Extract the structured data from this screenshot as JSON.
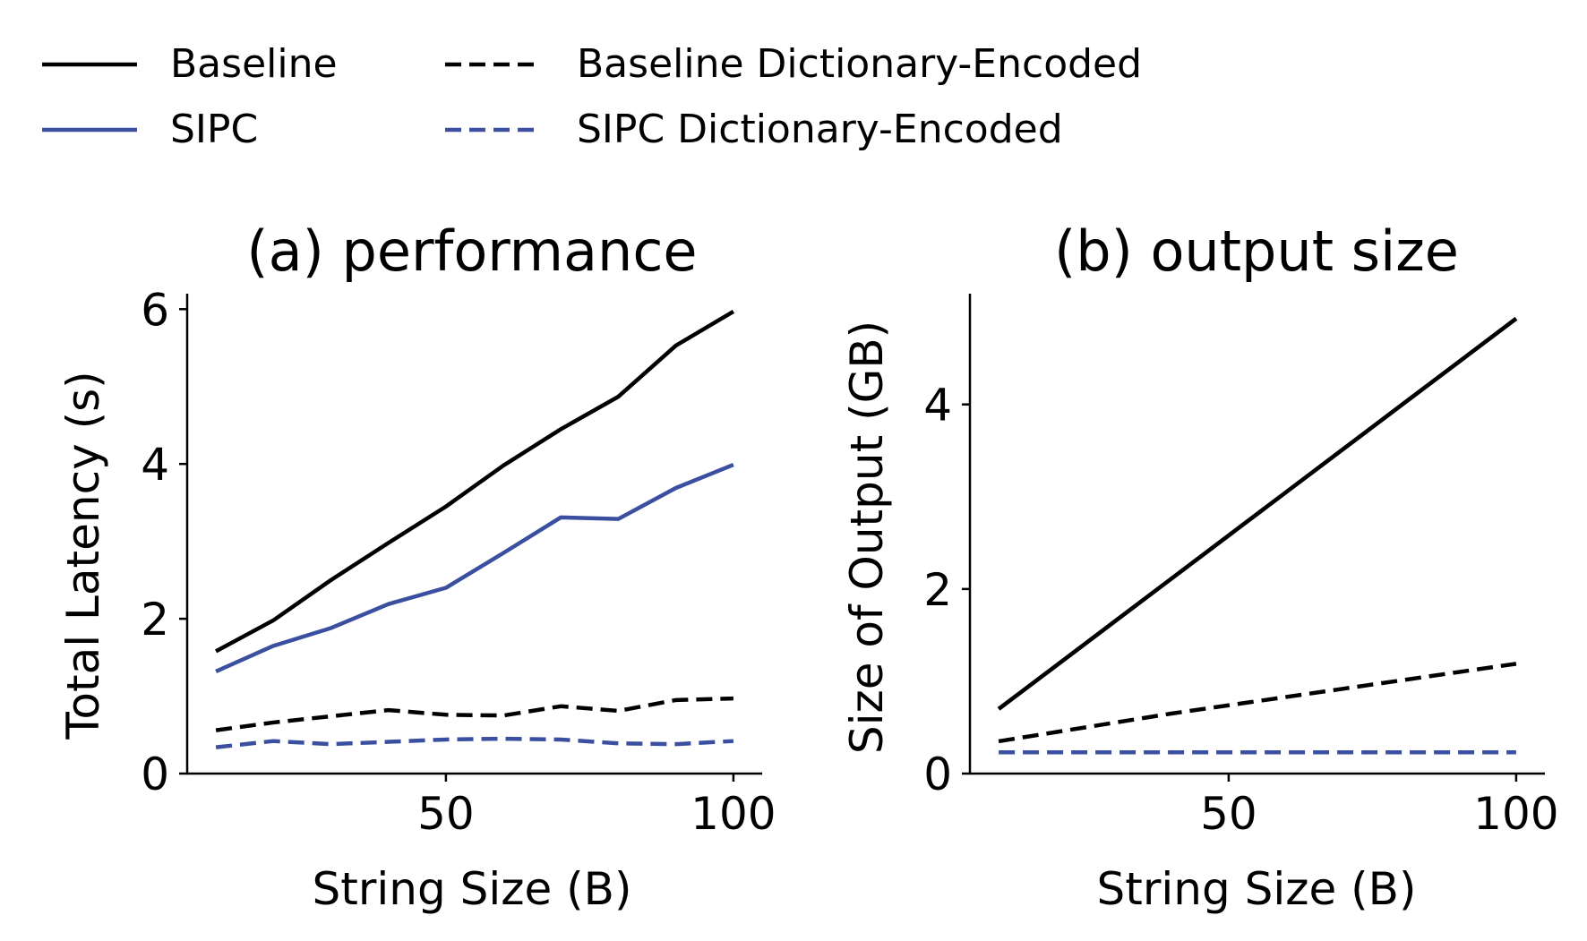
{
  "legend": {
    "items": [
      {
        "label": "Baseline",
        "color": "#000000",
        "dash": "solid"
      },
      {
        "label": "Baseline Dictionary-Encoded",
        "color": "#000000",
        "dash": "dashed"
      },
      {
        "label": "SIPC",
        "color": "#3a4fa0",
        "dash": "solid"
      },
      {
        "label": "SIPC Dictionary-Encoded",
        "color": "#3a4fa0",
        "dash": "dashed"
      }
    ]
  },
  "chart_data": [
    {
      "type": "line",
      "title": "(a) performance",
      "xlabel": "String Size (B)",
      "ylabel": "Total Latency (s)",
      "xlim": [
        5,
        105
      ],
      "ylim": [
        0,
        6.2
      ],
      "xticks": [
        50,
        100
      ],
      "yticks": [
        0,
        2,
        4,
        6
      ],
      "x": [
        10,
        20,
        30,
        40,
        50,
        60,
        70,
        80,
        90,
        100
      ],
      "series": [
        {
          "name": "Baseline",
          "color": "#000000",
          "dash": "solid",
          "values": [
            1.58,
            1.98,
            2.5,
            2.98,
            3.45,
            3.98,
            4.45,
            4.87,
            5.53,
            5.97
          ]
        },
        {
          "name": "SIPC",
          "color": "#3a4fa0",
          "dash": "solid",
          "values": [
            1.32,
            1.65,
            1.88,
            2.19,
            2.4,
            2.85,
            3.31,
            3.29,
            3.69,
            3.99
          ]
        },
        {
          "name": "Baseline Dictionary-Encoded",
          "color": "#000000",
          "dash": "dashed",
          "values": [
            0.56,
            0.66,
            0.74,
            0.82,
            0.76,
            0.75,
            0.87,
            0.81,
            0.95,
            0.97
          ]
        },
        {
          "name": "SIPC Dictionary-Encoded",
          "color": "#3a4fa0",
          "dash": "dashed",
          "values": [
            0.34,
            0.42,
            0.38,
            0.41,
            0.44,
            0.45,
            0.44,
            0.39,
            0.38,
            0.42
          ]
        }
      ]
    },
    {
      "type": "line",
      "title": "(b) output size",
      "xlabel": "String Size (B)",
      "ylabel": "Size of Output (GB)",
      "xlim": [
        5,
        105
      ],
      "ylim": [
        0,
        5.2
      ],
      "xticks": [
        50,
        100
      ],
      "yticks": [
        0,
        2,
        4
      ],
      "x": [
        10,
        20,
        30,
        40,
        50,
        60,
        70,
        80,
        90,
        100
      ],
      "series": [
        {
          "name": "SIPC",
          "color": "#3a4fa0",
          "dash": "solid",
          "values": [
            0.7,
            1.17,
            1.64,
            2.11,
            2.58,
            3.05,
            3.52,
            3.99,
            4.46,
            4.93
          ]
        },
        {
          "name": "Baseline",
          "color": "#000000",
          "dash": "solid",
          "values": [
            0.7,
            1.17,
            1.64,
            2.11,
            2.58,
            3.05,
            3.52,
            3.99,
            4.46,
            4.93
          ]
        },
        {
          "name": "Baseline Dictionary-Encoded",
          "color": "#000000",
          "dash": "dashed",
          "values": [
            0.35,
            0.45,
            0.55,
            0.65,
            0.74,
            0.83,
            0.92,
            1.01,
            1.1,
            1.19
          ]
        },
        {
          "name": "SIPC Dictionary-Encoded",
          "color": "#3a4fa0",
          "dash": "dashed",
          "values": [
            0.23,
            0.23,
            0.23,
            0.23,
            0.23,
            0.23,
            0.23,
            0.23,
            0.23,
            0.23
          ]
        }
      ]
    }
  ]
}
